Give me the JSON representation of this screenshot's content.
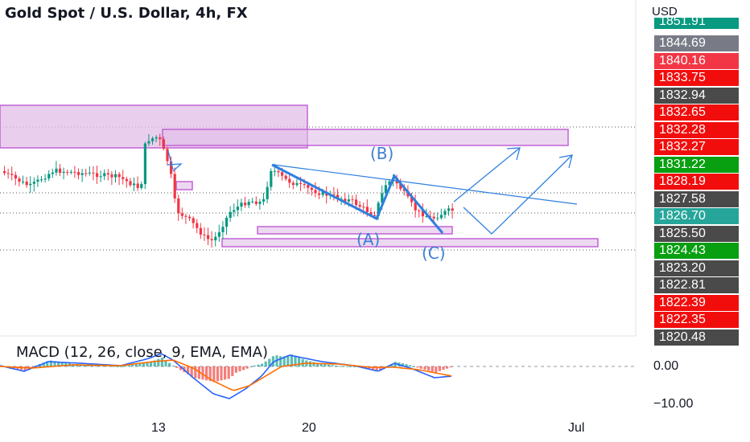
{
  "header": {
    "title": "Gold Spot / U.S. Dollar, 4h, FX"
  },
  "price_scale": {
    "currency": "USD",
    "labels": [
      {
        "text": "1851.91",
        "color": "#089981"
      },
      {
        "text": "1844.69",
        "color": "#787b86"
      },
      {
        "text": "1840.16",
        "color": "#f23645"
      },
      {
        "text": "1833.75",
        "color": "#f20d0d"
      },
      {
        "text": "1832.94",
        "color": "#4a4a4a"
      },
      {
        "text": "1832.65",
        "color": "#f20d0d"
      },
      {
        "text": "1832.28",
        "color": "#f20d0d"
      },
      {
        "text": "1832.27",
        "color": "#f20d0d"
      },
      {
        "text": "1831.22",
        "color": "#089f10"
      },
      {
        "text": "1828.19",
        "color": "#f20d0d"
      },
      {
        "text": "1827.58",
        "color": "#4a4a4a"
      },
      {
        "text": "1826.70",
        "color": "#26a69a"
      },
      {
        "text": "1825.50",
        "color": "#4a4a4a"
      },
      {
        "text": "1824.43",
        "color": "#089f10"
      },
      {
        "text": "1823.20",
        "color": "#4a4a4a"
      },
      {
        "text": "1822.81",
        "color": "#4a4a4a"
      },
      {
        "text": "1822.39",
        "color": "#f20d0d"
      },
      {
        "text": "1822.35",
        "color": "#f20d0d"
      },
      {
        "text": "1820.48",
        "color": "#4a4a4a"
      }
    ]
  },
  "waves": {
    "a": "(A)",
    "b": "(B)",
    "c": "(C)"
  },
  "macd": {
    "title": "MACD (12, 26, close, 9, EMA, EMA)",
    "ticks": [
      "0.00",
      "−10.00"
    ],
    "colors": {
      "macd_line": "#2962ff",
      "signal_line": "#ff6d00",
      "hist_up": "#26a69a",
      "hist_down": "#ef5350"
    }
  },
  "time_axis": {
    "labels": [
      "13",
      "20",
      "Jul"
    ]
  },
  "colors": {
    "zone_fill": "#e1bee7",
    "zone_stroke": "#c163d6",
    "drawing": "#2f7fe0",
    "bull": "#089981",
    "bear": "#f23645"
  }
}
